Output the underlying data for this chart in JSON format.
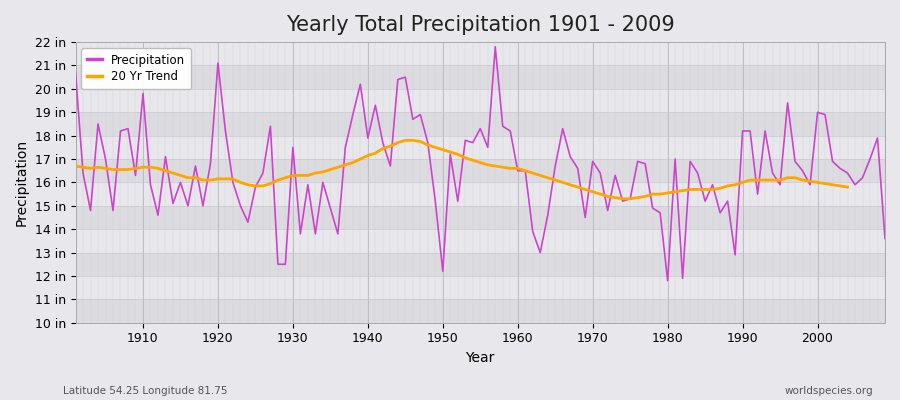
{
  "title": "Yearly Total Precipitation 1901 - 2009",
  "xlabel": "Year",
  "ylabel": "Precipitation",
  "lat_lon_label": "Latitude 54.25 Longitude 81.75",
  "watermark": "worldspecies.org",
  "ylim": [
    10,
    22
  ],
  "years": [
    1901,
    1902,
    1903,
    1904,
    1905,
    1906,
    1907,
    1908,
    1909,
    1910,
    1911,
    1912,
    1913,
    1914,
    1915,
    1916,
    1917,
    1918,
    1919,
    1920,
    1921,
    1922,
    1923,
    1924,
    1925,
    1926,
    1927,
    1928,
    1929,
    1930,
    1931,
    1932,
    1933,
    1934,
    1935,
    1936,
    1937,
    1938,
    1939,
    1940,
    1941,
    1942,
    1943,
    1944,
    1945,
    1946,
    1947,
    1948,
    1949,
    1950,
    1951,
    1952,
    1953,
    1954,
    1955,
    1956,
    1957,
    1958,
    1959,
    1960,
    1961,
    1962,
    1963,
    1964,
    1965,
    1966,
    1967,
    1968,
    1969,
    1970,
    1971,
    1972,
    1973,
    1974,
    1975,
    1976,
    1977,
    1978,
    1979,
    1980,
    1981,
    1982,
    1983,
    1984,
    1985,
    1986,
    1987,
    1988,
    1989,
    1990,
    1991,
    1992,
    1993,
    1994,
    1995,
    1996,
    1997,
    1998,
    1999,
    2000,
    2001,
    2002,
    2003,
    2004,
    2005,
    2006,
    2007,
    2008,
    2009
  ],
  "precip": [
    20.7,
    16.4,
    14.8,
    18.5,
    17.0,
    14.8,
    18.2,
    18.3,
    16.3,
    19.8,
    15.9,
    14.6,
    17.1,
    15.1,
    16.0,
    15.0,
    16.7,
    15.0,
    16.8,
    21.1,
    18.2,
    16.0,
    15.0,
    14.3,
    15.8,
    16.4,
    18.4,
    12.5,
    12.5,
    17.5,
    13.8,
    15.9,
    13.8,
    16.0,
    14.9,
    13.8,
    17.5,
    18.9,
    20.2,
    17.9,
    19.3,
    17.7,
    16.7,
    20.4,
    20.5,
    18.7,
    18.9,
    17.7,
    15.2,
    12.2,
    17.2,
    15.2,
    17.8,
    17.7,
    18.3,
    17.5,
    21.8,
    18.4,
    18.2,
    16.5,
    16.5,
    13.9,
    13.0,
    14.6,
    16.7,
    18.3,
    17.1,
    16.6,
    14.5,
    16.9,
    16.4,
    14.8,
    16.3,
    15.2,
    15.3,
    16.9,
    16.8,
    14.9,
    14.7,
    11.8,
    17.0,
    11.9,
    16.9,
    16.4,
    15.2,
    15.9,
    14.7,
    15.2,
    12.9,
    18.2,
    18.2,
    15.5,
    18.2,
    16.4,
    15.9,
    19.4,
    16.9,
    16.5,
    15.9,
    19.0,
    18.9,
    16.9,
    16.6,
    16.4,
    15.9,
    16.2,
    17.0,
    17.9,
    13.6
  ],
  "trend": [
    16.7,
    16.65,
    16.6,
    16.65,
    16.6,
    16.55,
    16.55,
    16.55,
    16.6,
    16.65,
    16.65,
    16.6,
    16.5,
    16.4,
    16.3,
    16.2,
    16.2,
    16.1,
    16.1,
    16.15,
    16.15,
    16.15,
    16.0,
    15.9,
    15.85,
    15.85,
    15.95,
    16.1,
    16.2,
    16.3,
    16.3,
    16.3,
    16.4,
    16.45,
    16.55,
    16.65,
    16.75,
    16.85,
    17.0,
    17.15,
    17.25,
    17.45,
    17.55,
    17.7,
    17.8,
    17.8,
    17.75,
    17.6,
    17.5,
    17.4,
    17.3,
    17.2,
    17.05,
    16.95,
    16.85,
    16.75,
    16.7,
    16.65,
    16.6,
    16.6,
    16.5,
    16.4,
    16.3,
    16.2,
    16.1,
    16.0,
    15.9,
    15.8,
    15.7,
    15.6,
    15.5,
    15.4,
    15.35,
    15.3,
    15.3,
    15.35,
    15.4,
    15.5,
    15.5,
    15.55,
    15.6,
    15.65,
    15.7,
    15.7,
    15.7,
    15.7,
    15.75,
    15.85,
    15.9,
    16.0,
    16.1,
    16.1,
    16.1,
    16.1,
    16.1,
    16.2,
    16.2,
    16.1,
    16.05,
    16.0,
    15.95,
    15.9,
    15.85,
    15.8,
    null,
    null,
    null,
    null,
    null
  ],
  "precip_color": "#CC44CC",
  "trend_color": "#FFA500",
  "bg_color": "#E8E8EC",
  "plot_bg_color": "#E4E4E8",
  "grid_color_h": "#D0D0D8",
  "grid_color_v": "#CCCCCC",
  "title_fontsize": 15,
  "label_fontsize": 10,
  "tick_fontsize": 9
}
